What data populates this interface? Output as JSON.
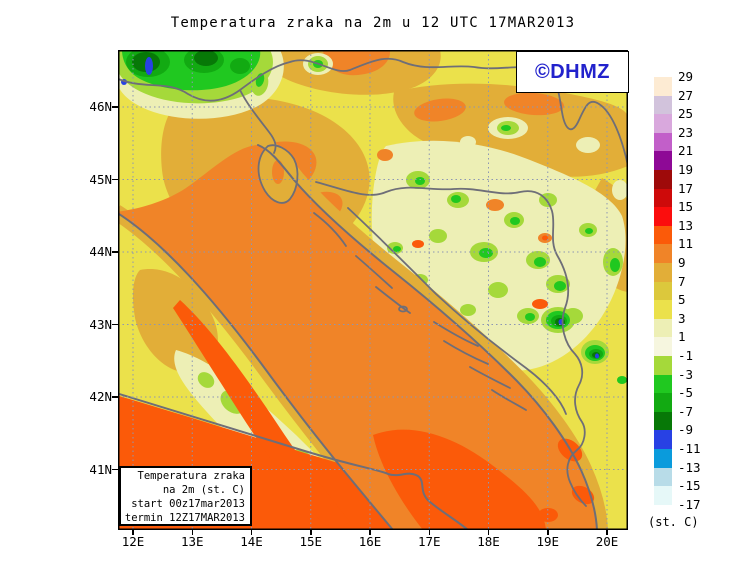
{
  "title": "Temperatura zraka na 2m u 12 UTC 17MAR2013",
  "watermark": {
    "text": "©DHMZ",
    "color": "#2222CC"
  },
  "axes": {
    "lat_labels": [
      "46N",
      "45N",
      "44N",
      "43N",
      "42N",
      "41N"
    ],
    "lon_labels": [
      "12E",
      "13E",
      "14E",
      "15E",
      "16E",
      "17E",
      "18E",
      "19E",
      "20E"
    ]
  },
  "colorbar": {
    "unit_label": "(st. C)",
    "tick_values": [
      29,
      27,
      25,
      23,
      21,
      19,
      17,
      15,
      13,
      11,
      9,
      7,
      5,
      3,
      1,
      -1,
      -3,
      -5,
      -7,
      -9,
      -11,
      -13,
      -15,
      -17
    ],
    "swatch_colors": [
      "#FDEBD3",
      "#D2C3DC",
      "#D9A8DD",
      "#C25FC9",
      "#8E0996",
      "#9E0A0A",
      "#CE0A0A",
      "#FB0D0D",
      "#FB5A09",
      "#F08428",
      "#E2AE38",
      "#DCC83C",
      "#EBE14B",
      "#EDEFB5",
      "#F6F6DF",
      "#A5D93A",
      "#20C820",
      "#12AA12",
      "#077807",
      "#2841E4",
      "#0A9BDC",
      "#B8DCE8",
      "#E6F8F8"
    ]
  },
  "info_box": {
    "lines": [
      "Temperatura zraka",
      "na 2m (st. C)",
      "start 00z17mar2013",
      "termin 12Z17MAR2013"
    ]
  },
  "palette": {
    "t13": "#FB5A09",
    "t11": "#F08428",
    "t9": "#E2AE38",
    "t7": "#DCC83C",
    "t5": "#EBE14B",
    "t3": "#EDEFB5",
    "t1": "#F6F6DF",
    "tm1": "#A5D93A",
    "tm3": "#20C820",
    "tm5": "#12AA12",
    "tm7": "#077807",
    "tm9": "#2841E4",
    "line": "#6E6E78",
    "grid": "#8C96B4"
  },
  "chart_data": {
    "type": "heatmap",
    "subtype": "filled-contour-weather-map",
    "parameter": "Temperatura zraka na 2m",
    "unit": "st. C",
    "valid_time": "12 UTC 17MAR2013",
    "model_start": "00z17mar2013",
    "model_termin": "12Z17MAR2013",
    "lon_ticks_deg_e": [
      12,
      13,
      14,
      15,
      16,
      17,
      18,
      19,
      20
    ],
    "lat_ticks_deg_n": [
      46,
      45,
      44,
      43,
      42,
      41
    ],
    "contour_interval_c": 2,
    "scale_values_c": [
      29,
      27,
      25,
      23,
      21,
      19,
      17,
      15,
      13,
      11,
      9,
      7,
      5,
      3,
      1,
      -1,
      -3,
      -5,
      -7,
      -9,
      -11,
      -13,
      -15,
      -17
    ],
    "legend_position": "right",
    "grid": "dotted-graticule"
  }
}
